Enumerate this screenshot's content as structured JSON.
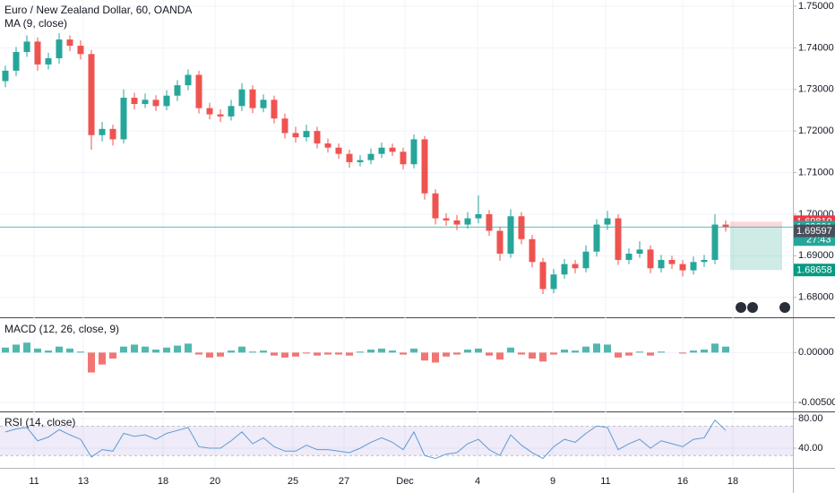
{
  "chart_data": {
    "type": "candlestick",
    "title": "Euro / New Zealand Dollar, 60, OANDA",
    "ma_label": "MA (9, close)",
    "up_color": "#26a69a",
    "down_color": "#ef5350",
    "grid": true,
    "xticks": [
      {
        "value": 2.67,
        "label": "11"
      },
      {
        "value": 7.25,
        "label": "13"
      },
      {
        "value": 14.67,
        "label": "18"
      },
      {
        "value": 19.5,
        "label": "20"
      },
      {
        "value": 26.75,
        "label": "25"
      },
      {
        "value": 31.5,
        "label": "27"
      },
      {
        "value": 37.17,
        "label": "Dec"
      },
      {
        "value": 43.92,
        "label": "4"
      },
      {
        "value": 50.92,
        "label": "9"
      },
      {
        "value": 55.83,
        "label": "11"
      },
      {
        "value": 63,
        "label": "16"
      },
      {
        "value": 67.67,
        "label": "18"
      }
    ],
    "price": {
      "ylim": [
        1.6752,
        1.7515
      ],
      "yticks": [
        {
          "value": 1.75,
          "label": "1.75000"
        },
        {
          "value": 1.74,
          "label": "1.74000"
        },
        {
          "value": 1.73,
          "label": "1.73000"
        },
        {
          "value": 1.72,
          "label": "1.72000"
        },
        {
          "value": 1.71,
          "label": "1.71000"
        },
        {
          "value": 1.7,
          "label": "1.70000"
        },
        {
          "value": 1.69,
          "label": "1.69000"
        },
        {
          "value": 1.68,
          "label": "1.68000"
        }
      ],
      "open": [
        1.732,
        1.7345,
        1.739,
        1.7415,
        1.736,
        1.7375,
        1.742,
        1.7405,
        1.7385,
        1.719,
        1.7205,
        1.718,
        1.728,
        1.7265,
        1.7275,
        1.726,
        1.7285,
        1.731,
        1.7335,
        1.7255,
        1.724,
        1.7235,
        1.726,
        1.73,
        1.7255,
        1.7275,
        1.723,
        1.7195,
        1.7185,
        1.72,
        1.717,
        1.716,
        1.7145,
        1.7125,
        1.713,
        1.7145,
        1.716,
        1.715,
        1.712,
        1.718,
        1.705,
        1.699,
        1.6985,
        1.6975,
        1.699,
        1.7,
        1.696,
        1.6905,
        1.6995,
        1.694,
        1.6885,
        1.682,
        1.6855,
        1.688,
        1.687,
        1.691,
        1.6975,
        1.699,
        1.689,
        1.6905,
        1.6915,
        1.687,
        1.689,
        1.688,
        1.6865,
        1.6885,
        1.689,
        1.6975
      ],
      "high": [
        1.7357,
        1.7402,
        1.743,
        1.7425,
        1.7388,
        1.7435,
        1.743,
        1.7418,
        1.7395,
        1.7222,
        1.7215,
        1.73,
        1.7292,
        1.729,
        1.7286,
        1.7298,
        1.7322,
        1.7348,
        1.7345,
        1.7268,
        1.7252,
        1.7275,
        1.7315,
        1.731,
        1.7288,
        1.7285,
        1.7242,
        1.721,
        1.7215,
        1.721,
        1.7182,
        1.717,
        1.7155,
        1.7142,
        1.7158,
        1.7172,
        1.717,
        1.716,
        1.7192,
        1.7188,
        1.706,
        1.7002,
        1.6998,
        1.7005,
        1.7045,
        1.701,
        1.697,
        1.7012,
        1.7005,
        1.695,
        1.6895,
        1.6868,
        1.6892,
        1.689,
        1.6925,
        1.6988,
        1.7008,
        1.7,
        1.6918,
        1.6935,
        1.6925,
        1.6902,
        1.69,
        1.689,
        1.6898,
        1.6902,
        1.7,
        1.6985
      ],
      "low": [
        1.7305,
        1.7332,
        1.7378,
        1.7345,
        1.7348,
        1.7362,
        1.7392,
        1.7372,
        1.7155,
        1.7175,
        1.7165,
        1.717,
        1.7252,
        1.7255,
        1.7248,
        1.725,
        1.7272,
        1.7298,
        1.7242,
        1.7228,
        1.7222,
        1.7225,
        1.7248,
        1.7243,
        1.7245,
        1.7218,
        1.7182,
        1.7172,
        1.7175,
        1.7158,
        1.7148,
        1.7133,
        1.7112,
        1.7115,
        1.712,
        1.7135,
        1.714,
        1.7108,
        1.711,
        1.7035,
        1.6975,
        1.6972,
        1.6962,
        1.6965,
        1.6978,
        1.6948,
        1.6888,
        1.6895,
        1.6928,
        1.6872,
        1.6808,
        1.681,
        1.6845,
        1.6858,
        1.686,
        1.6898,
        1.6962,
        1.6878,
        1.688,
        1.6895,
        1.6858,
        1.686,
        1.6868,
        1.685,
        1.6855,
        1.6873,
        1.688,
        1.6958
      ],
      "close": [
        1.7345,
        1.739,
        1.7415,
        1.736,
        1.7375,
        1.742,
        1.7405,
        1.7385,
        1.719,
        1.7205,
        1.718,
        1.728,
        1.7265,
        1.7275,
        1.726,
        1.7285,
        1.731,
        1.7335,
        1.7255,
        1.724,
        1.7235,
        1.726,
        1.73,
        1.7255,
        1.7275,
        1.723,
        1.7195,
        1.7185,
        1.72,
        1.717,
        1.716,
        1.7145,
        1.7125,
        1.713,
        1.7145,
        1.716,
        1.715,
        1.712,
        1.718,
        1.705,
        1.699,
        1.6985,
        1.6975,
        1.699,
        1.7,
        1.696,
        1.6905,
        1.6995,
        1.694,
        1.6885,
        1.682,
        1.6855,
        1.688,
        1.687,
        1.691,
        1.6975,
        1.699,
        1.689,
        1.6905,
        1.6915,
        1.687,
        1.689,
        1.688,
        1.6865,
        1.6885,
        1.689,
        1.6975,
        1.6969
      ],
      "position": {
        "stop": {
          "value": 1.69819,
          "color": "#f23645",
          "zone": "rgba(242,54,69,0.2)"
        },
        "entry": {
          "value": 1.69691,
          "color": "#26a69a"
        },
        "target": {
          "value": 1.68658,
          "color": "#089981",
          "zone": "rgba(8,153,129,0.2)"
        }
      },
      "last_price": {
        "value": 1.69597,
        "color": "#4a4e5a"
      },
      "countdown": "27:43"
    },
    "macd": {
      "label": "MACD (12, 26, close, 9)",
      "ylim": [
        -0.00591,
        0.00345
      ],
      "yticks": [
        {
          "value": 0,
          "label": "0.00000"
        },
        {
          "value": -0.005,
          "label": "-0.00500"
        }
      ],
      "histogram": [
        0.0005,
        0.0008,
        0.001,
        0.0004,
        0.0002,
        0.0006,
        0.0004,
        0.0001,
        -0.002,
        -0.0012,
        -0.0006,
        0.0006,
        0.0008,
        0.0006,
        0.0003,
        0.0005,
        0.0007,
        0.0009,
        -0.0002,
        -0.0005,
        -0.0004,
        0.0002,
        0.0006,
        0.0001,
        0.0002,
        -0.0003,
        -0.0005,
        -0.0004,
        -0.0001,
        -0.0003,
        -0.0002,
        -0.0002,
        -0.0003,
        0.0001,
        0.0003,
        0.0004,
        0.0002,
        -0.0002,
        0.0004,
        -0.0008,
        -0.001,
        -0.0004,
        -0.0002,
        0.0003,
        0.0004,
        -0.0003,
        -0.0007,
        0.0005,
        -0.0002,
        -0.0006,
        -0.0009,
        -0.0002,
        0.0003,
        0.0002,
        0.0006,
        0.0009,
        0.0008,
        -0.0005,
        -0.0003,
        0.0001,
        -0.0003,
        0.0001,
        0.0,
        -0.0001,
        0.0002,
        0.0003,
        0.0009,
        0.0006
      ]
    },
    "rsi": {
      "label": "RSI (14, close)",
      "ylim": [
        13.3,
        88.5
      ],
      "yticks": [
        {
          "value": 80,
          "label": "80.00"
        },
        {
          "value": 40,
          "label": "40.00"
        }
      ],
      "band": [
        30,
        70
      ],
      "color": "#5b9bd5",
      "band_color": "rgba(126,87,194,0.12)",
      "values": [
        62,
        66,
        68,
        50,
        55,
        65,
        58,
        52,
        28,
        38,
        36,
        60,
        56,
        58,
        52,
        60,
        64,
        68,
        42,
        40,
        40,
        50,
        62,
        46,
        54,
        42,
        36,
        36,
        44,
        38,
        38,
        36,
        34,
        40,
        48,
        54,
        48,
        38,
        62,
        30,
        26,
        32,
        34,
        46,
        52,
        38,
        30,
        58,
        44,
        34,
        26,
        42,
        52,
        48,
        60,
        70,
        68,
        38,
        46,
        52,
        40,
        50,
        46,
        42,
        52,
        54,
        78,
        64
      ]
    }
  }
}
